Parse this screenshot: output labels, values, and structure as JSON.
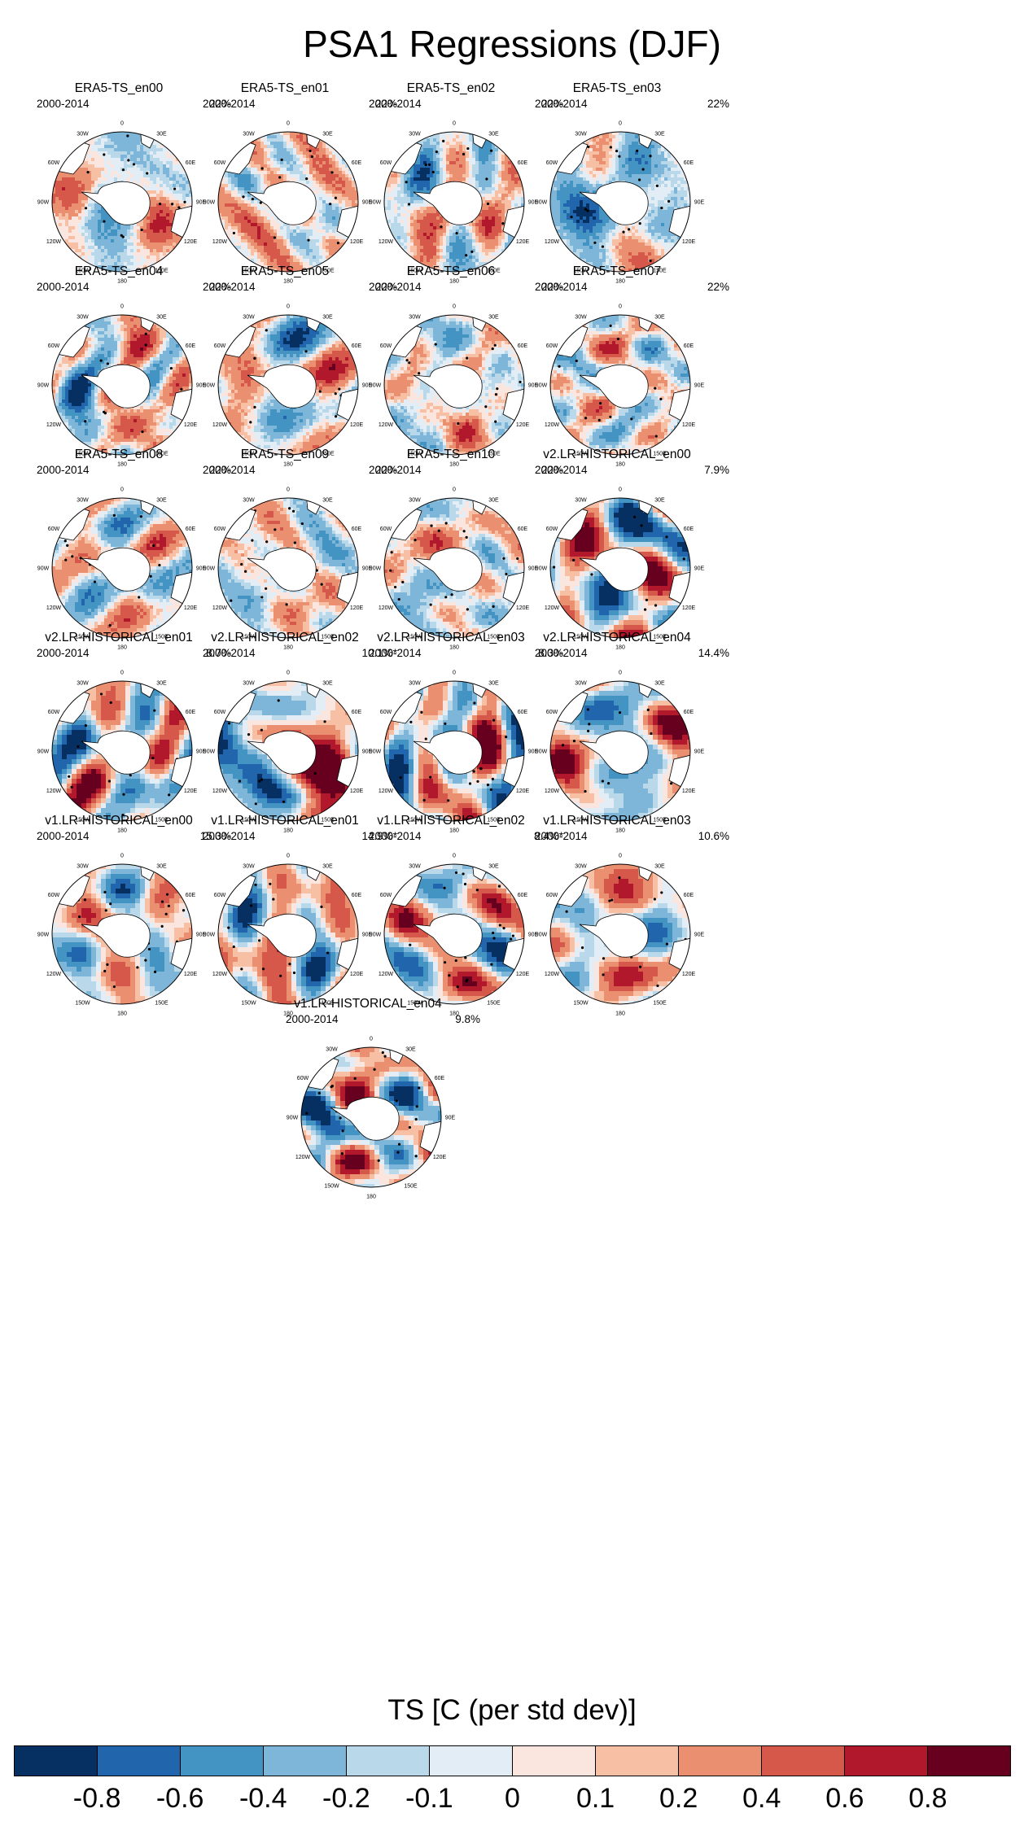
{
  "title": "PSA1 Regressions (DJF)",
  "panels": [
    {
      "title": "ERA5-TS_en00",
      "years": "2000-2014",
      "pct": "22%",
      "pattern": "era",
      "seed": 1
    },
    {
      "title": "ERA5-TS_en01",
      "years": "2000-2014",
      "pct": "22%",
      "pattern": "era",
      "seed": 2
    },
    {
      "title": "ERA5-TS_en02",
      "years": "2000-2014",
      "pct": "22%",
      "pattern": "era",
      "seed": 3
    },
    {
      "title": "ERA5-TS_en03",
      "years": "2000-2014",
      "pct": "22%",
      "pattern": "era",
      "seed": 4
    },
    {
      "title": "ERA5-TS_en04",
      "years": "2000-2014",
      "pct": "22%",
      "pattern": "era",
      "seed": 5
    },
    {
      "title": "ERA5-TS_en05",
      "years": "2000-2014",
      "pct": "22%",
      "pattern": "era",
      "seed": 6
    },
    {
      "title": "ERA5-TS_en06",
      "years": "2000-2014",
      "pct": "22%",
      "pattern": "era",
      "seed": 7
    },
    {
      "title": "ERA5-TS_en07",
      "years": "2000-2014",
      "pct": "22%",
      "pattern": "era",
      "seed": 8
    },
    {
      "title": "ERA5-TS_en08",
      "years": "2000-2014",
      "pct": "22%",
      "pattern": "era",
      "seed": 9
    },
    {
      "title": "ERA5-TS_en09",
      "years": "2000-2014",
      "pct": "22%",
      "pattern": "era",
      "seed": 10
    },
    {
      "title": "ERA5-TS_en10",
      "years": "2000-2014",
      "pct": "22%",
      "pattern": "era",
      "seed": 11
    },
    {
      "title": "v2.LR-HISTORICAL_en00",
      "years": "2000-2014",
      "pct": "7.9%",
      "pattern": "model",
      "seed": 12
    },
    {
      "title": "v2.LR-HISTORICAL_en01",
      "years": "2000-2014",
      "pct": "8.7%",
      "pattern": "model",
      "seed": 13
    },
    {
      "title": "v2.LR-HISTORICAL_en02",
      "years": "2000-2014",
      "pct": "10.1%*",
      "pattern": "model",
      "seed": 14
    },
    {
      "title": "v2.LR-HISTORICAL_en03",
      "years": "2000-2014",
      "pct": "8.3%",
      "pattern": "model",
      "seed": 15
    },
    {
      "title": "v2.LR-HISTORICAL_en04",
      "years": "2000-2014",
      "pct": "14.4%",
      "pattern": "model",
      "seed": 16
    },
    {
      "title": "v1.LR-HISTORICAL_en00",
      "years": "2000-2014",
      "pct": "15.3%",
      "pattern": "model",
      "seed": 17
    },
    {
      "title": "v1.LR-HISTORICAL_en01",
      "years": "2000-2014",
      "pct": "14.9%*",
      "pattern": "model",
      "seed": 18
    },
    {
      "title": "v1.LR-HISTORICAL_en02",
      "years": "2000-2014",
      "pct": "8.4%*",
      "pattern": "model",
      "seed": 19
    },
    {
      "title": "v1.LR-HISTORICAL_en03",
      "years": "2000-2014",
      "pct": "10.6%",
      "pattern": "model",
      "seed": 20
    },
    {
      "title": "v1.LR-HISTORICAL_en04",
      "years": "2000-2014",
      "pct": "9.8%",
      "pattern": "model",
      "seed": 21
    }
  ],
  "map_labels": {
    "lon": [
      "0",
      "30E",
      "60E",
      "90E",
      "120E",
      "150E",
      "180",
      "150W",
      "120W",
      "90W",
      "60W",
      "30W"
    ]
  },
  "colorbar": {
    "title": "TS [C (per std dev)]",
    "colors": [
      "#053061",
      "#2166ac",
      "#4393c3",
      "#7eb6d9",
      "#b9d9ea",
      "#e3edf5",
      "#fbe6df",
      "#f7bfa4",
      "#ea8f70",
      "#d6584a",
      "#b2182b",
      "#67001f"
    ],
    "levels": [
      "-0.8",
      "-0.6",
      "-0.4",
      "-0.2",
      "-0.1",
      "0",
      "0.1",
      "0.2",
      "0.4",
      "0.6",
      "0.8"
    ]
  },
  "chart_data": {
    "type": "heatmap",
    "title": "PSA1 Regressions (DJF)",
    "subplots": 21,
    "projection": "south polar stereographic",
    "period": "2000-2014",
    "variable": "TS",
    "units": "C (per std dev)",
    "contour_levels": [
      -0.8,
      -0.6,
      -0.4,
      -0.2,
      -0.1,
      0,
      0.1,
      0.2,
      0.4,
      0.6,
      0.8
    ],
    "explained_variance": {
      "ERA5-TS_en00": "22%",
      "ERA5-TS_en01": "22%",
      "ERA5-TS_en02": "22%",
      "ERA5-TS_en03": "22%",
      "ERA5-TS_en04": "22%",
      "ERA5-TS_en05": "22%",
      "ERA5-TS_en06": "22%",
      "ERA5-TS_en07": "22%",
      "ERA5-TS_en08": "22%",
      "ERA5-TS_en09": "22%",
      "ERA5-TS_en10": "22%",
      "v2.LR-HISTORICAL_en00": "7.9%",
      "v2.LR-HISTORICAL_en01": "8.7%",
      "v2.LR-HISTORICAL_en02": "10.1%*",
      "v2.LR-HISTORICAL_en03": "8.3%",
      "v2.LR-HISTORICAL_en04": "14.4%",
      "v1.LR-HISTORICAL_en00": "15.3%",
      "v1.LR-HISTORICAL_en01": "14.9%*",
      "v1.LR-HISTORICAL_en02": "8.4%*",
      "v1.LR-HISTORICAL_en03": "10.6%",
      "v1.LR-HISTORICAL_en04": "9.8%"
    }
  }
}
